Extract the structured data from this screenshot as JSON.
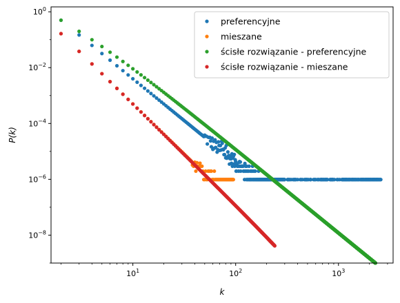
{
  "chart_data": {
    "type": "scatter",
    "title": "",
    "xlabel": "k",
    "ylabel": "P(k)",
    "xscale": "log",
    "yscale": "log",
    "xlim": [
      1.6,
      3400
    ],
    "ylim": [
      1e-09,
      1.5
    ],
    "grid": false,
    "legend_position": "top-right",
    "x_ticks": [
      {
        "value": 10,
        "base": "10",
        "exp": "1"
      },
      {
        "value": 100,
        "base": "10",
        "exp": "2"
      },
      {
        "value": 1000,
        "base": "10",
        "exp": "3"
      }
    ],
    "y_ticks": [
      {
        "value": 1,
        "base": "10",
        "exp": "0"
      },
      {
        "value": 0.01,
        "base": "10",
        "exp": "−2"
      },
      {
        "value": 0.0001,
        "base": "10",
        "exp": "−4"
      },
      {
        "value": 1e-06,
        "base": "10",
        "exp": "−6"
      },
      {
        "value": 1e-08,
        "base": "10",
        "exp": "−8"
      }
    ],
    "series": [
      {
        "name": "preferencyjne",
        "color": "#1f77b4",
        "model": {
          "kind": "power_law_with_floor",
          "a": 4.0,
          "b": 3.0,
          "kmin": 2,
          "kmax": 2600,
          "floor": 9.8e-07,
          "noise_start": 50
        }
      },
      {
        "name": "mieszane",
        "color": "#ff7f0e",
        "model": {
          "kind": "power_law_with_floor",
          "a": 2.0,
          "b": 3.6,
          "kmin": 2,
          "kmax": 95,
          "floor": 9.8e-07,
          "noise_start": 38
        }
      },
      {
        "name": "ścisłe rozwiązanie - preferencyjne",
        "color": "#2ca02c",
        "model": {
          "kind": "exact_preferential",
          "kmin": 2,
          "kmax": 2600
        }
      },
      {
        "name": "ścisłe rozwiązanie - mieszane",
        "color": "#d62728",
        "model": {
          "kind": "exact_mixed",
          "kmin": 2,
          "kmax": 240
        }
      }
    ]
  }
}
